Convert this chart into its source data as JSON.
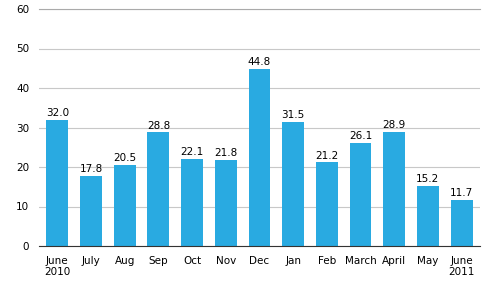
{
  "categories": [
    "June\n2010",
    "July",
    "Aug",
    "Sep",
    "Oct",
    "Nov",
    "Dec",
    "Jan",
    "Feb",
    "March",
    "April",
    "May",
    "June\n2011"
  ],
  "values": [
    32.0,
    17.8,
    20.5,
    28.8,
    22.1,
    21.8,
    44.8,
    31.5,
    21.2,
    26.1,
    28.9,
    15.2,
    11.7
  ],
  "bar_color": "#29aae1",
  "ylim": [
    0,
    60
  ],
  "yticks": [
    0,
    10,
    20,
    30,
    40,
    50,
    60
  ],
  "background_color": "#ffffff",
  "grid_color": "#c8c8c8",
  "value_fontsize": 7.5,
  "tick_fontsize": 7.5
}
